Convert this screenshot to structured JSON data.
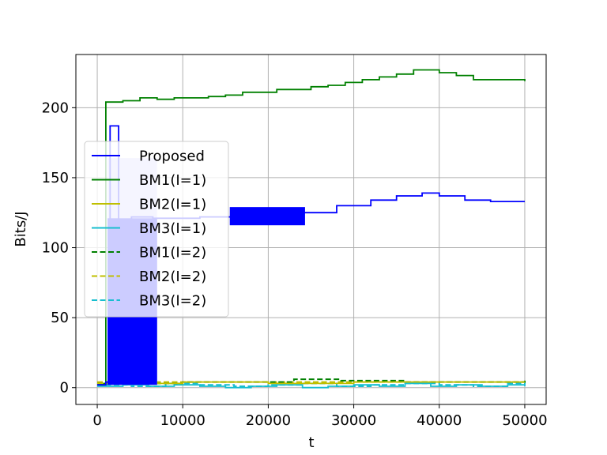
{
  "chart_data": {
    "type": "line",
    "title": "",
    "xlabel": "t",
    "ylabel": "Bits/J",
    "xlim": [
      -2500,
      52500
    ],
    "ylim": [
      -12,
      238
    ],
    "xticks": [
      0,
      10000,
      20000,
      30000,
      40000,
      50000
    ],
    "xtick_labels": [
      "0",
      "10000",
      "20000",
      "30000",
      "40000",
      "50000"
    ],
    "yticks": [
      0,
      50,
      100,
      150,
      200
    ],
    "ytick_labels": [
      "0",
      "50",
      "100",
      "150",
      "200"
    ],
    "grid": true,
    "legend_position": "center-left",
    "series": [
      {
        "name": "Proposed",
        "color": "#0000ff",
        "style": "solid",
        "x": [
          0,
          1000,
          1500,
          2500,
          4000,
          6500,
          8000,
          12000,
          16000,
          20000,
          24000,
          28000,
          32000,
          35000,
          38000,
          40000,
          43000,
          46000,
          50000
        ],
        "y": [
          2,
          4,
          187,
          120,
          122,
          121,
          121,
          122,
          121,
          124,
          125,
          130,
          134,
          137,
          139,
          137,
          134,
          133,
          133
        ],
        "oscillation_bands": [
          {
            "x_start": 1200,
            "x_end": 7000,
            "low": 2,
            "high": 121
          },
          {
            "x_start": 15500,
            "x_end": 24300,
            "low": 116,
            "high": 129
          }
        ],
        "faded_envelope": {
          "x_start": 1200,
          "x_end": 7000,
          "low": 2,
          "high": 164,
          "color": "#ccccff"
        }
      },
      {
        "name": "BM1(I=1)",
        "color": "#008000",
        "style": "solid",
        "x": [
          0,
          800,
          1000,
          3000,
          5000,
          7000,
          9000,
          11000,
          13000,
          15000,
          17000,
          19000,
          21000,
          23000,
          25000,
          27000,
          29000,
          31000,
          33000,
          35000,
          37000,
          38500,
          40000,
          42000,
          44000,
          46000,
          48000,
          50000
        ],
        "y": [
          2,
          3,
          204,
          205,
          207,
          206,
          207,
          207,
          208,
          209,
          211,
          211,
          213,
          213,
          215,
          216,
          218,
          220,
          222,
          224,
          227,
          227,
          225,
          223,
          220,
          220,
          220,
          219
        ]
      },
      {
        "name": "BM2(I=1)",
        "color": "#bfbf00",
        "style": "solid",
        "x": [
          0,
          10000,
          20000,
          30000,
          40000,
          50000
        ],
        "y": [
          3,
          4,
          3,
          4,
          4,
          4
        ]
      },
      {
        "name": "BM3(I=1)",
        "color": "#17becf",
        "style": "solid",
        "x": [
          0,
          3000,
          6000,
          9000,
          12000,
          15000,
          18000,
          21000,
          24000,
          27000,
          30000,
          33000,
          36000,
          39000,
          42000,
          45000,
          48000,
          50000
        ],
        "y": [
          1,
          2,
          1,
          2,
          1,
          0,
          1,
          2,
          0,
          1,
          2,
          1,
          3,
          1,
          2,
          1,
          2,
          1
        ]
      },
      {
        "name": "BM1(I=2)",
        "color": "#008000",
        "style": "dashed",
        "x": [
          0,
          10000,
          20000,
          22500,
          23000,
          28000,
          28500,
          35000,
          36000,
          50000
        ],
        "y": [
          3,
          4,
          4,
          4,
          6,
          6,
          5,
          5,
          4,
          5
        ]
      },
      {
        "name": "BM2(I=2)",
        "color": "#bfbf00",
        "style": "dashed",
        "x": [
          0,
          10000,
          20000,
          30000,
          40000,
          50000
        ],
        "y": [
          4,
          4,
          4,
          4,
          4,
          4
        ]
      },
      {
        "name": "BM3(I=2)",
        "color": "#17becf",
        "style": "dashed",
        "x": [
          0,
          4000,
          8000,
          12000,
          16000,
          20000,
          24000,
          28000,
          32000,
          36000,
          40000,
          44000,
          48000,
          50000
        ],
        "y": [
          2,
          1,
          3,
          2,
          1,
          2,
          3,
          1,
          2,
          3,
          2,
          1,
          3,
          2
        ]
      }
    ]
  }
}
